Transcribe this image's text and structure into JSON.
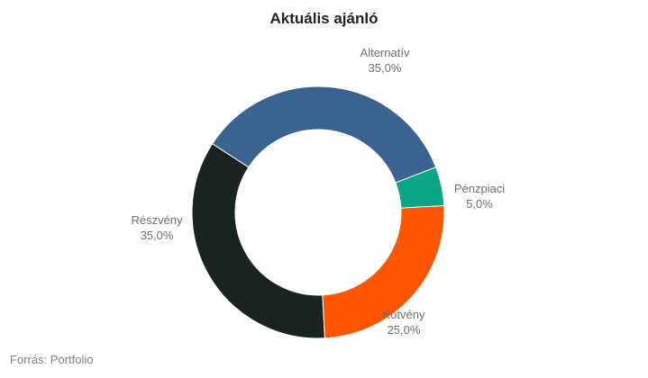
{
  "title": "Aktuális ajánló",
  "source": "Forrás: Portfolio",
  "chart_data": {
    "type": "pie",
    "variant": "donut",
    "title": "Aktuális ajánló",
    "slices": [
      {
        "label": "Alternatív",
        "value": 35.0,
        "value_label": "35,0%",
        "color": "#3a6390"
      },
      {
        "label": "Pénzpiaci",
        "value": 5.0,
        "value_label": "5,0%",
        "color": "#0aa584"
      },
      {
        "label": "Kötvény",
        "value": 25.0,
        "value_label": "25,0%",
        "color": "#fe5500"
      },
      {
        "label": "Részvény",
        "value": 35.0,
        "value_label": "35,0%",
        "color": "#1a231f"
      }
    ]
  }
}
